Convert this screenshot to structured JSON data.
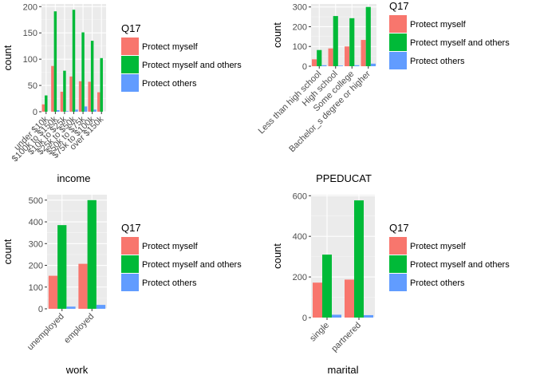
{
  "legend_title": "Q17",
  "series_names": [
    "Protect myself",
    "Protect myself and others",
    "Protect others"
  ],
  "colors": [
    "#F8766D",
    "#00BA38",
    "#619CFF"
  ],
  "chart_data": [
    {
      "type": "bar",
      "xlabel": "income",
      "ylabel": "count",
      "ylim": [
        0,
        205
      ],
      "yticks": [
        0,
        50,
        100,
        150,
        200
      ],
      "categories": [
        "under $10k",
        "$100k to $150k",
        "$10k to $25k",
        "$25k to $50k",
        "$50k to $75k",
        "$75k to $100k",
        "over $150k"
      ],
      "series": [
        {
          "name": "Protect myself",
          "values": [
            14,
            87,
            38,
            67,
            58,
            57,
            37
          ]
        },
        {
          "name": "Protect myself and others",
          "values": [
            31,
            191,
            78,
            194,
            151,
            135,
            102
          ]
        },
        {
          "name": "Protect others",
          "values": [
            0,
            3,
            1,
            4,
            10,
            4,
            0
          ]
        }
      ]
    },
    {
      "type": "bar",
      "xlabel": "PPEDUCAT",
      "ylabel": "count",
      "ylim": [
        0,
        315
      ],
      "yticks": [
        0,
        100,
        200,
        300
      ],
      "categories": [
        "Less than high school",
        "High school",
        "Some college",
        "Bachelor_s degree or higher"
      ],
      "series": [
        {
          "name": "Protect myself",
          "values": [
            35,
            90,
            100,
            133
          ]
        },
        {
          "name": "Protect myself and others",
          "values": [
            82,
            254,
            243,
            300
          ]
        },
        {
          "name": "Protect others",
          "values": [
            5,
            3,
            5,
            13
          ]
        }
      ]
    },
    {
      "type": "bar",
      "xlabel": "work",
      "ylabel": "count",
      "ylim": [
        0,
        525
      ],
      "yticks": [
        0,
        100,
        200,
        300,
        400,
        500
      ],
      "categories": [
        "unemployed",
        "employed"
      ],
      "series": [
        {
          "name": "Protect myself",
          "values": [
            152,
            207
          ]
        },
        {
          "name": "Protect myself and others",
          "values": [
            385,
            500
          ]
        },
        {
          "name": "Protect others",
          "values": [
            10,
            18
          ]
        }
      ]
    },
    {
      "type": "bar",
      "xlabel": "marital",
      "ylabel": "count",
      "ylim": [
        0,
        605
      ],
      "yticks": [
        0,
        200,
        400,
        600
      ],
      "categories": [
        "single",
        "partnered"
      ],
      "series": [
        {
          "name": "Protect myself",
          "values": [
            172,
            187
          ]
        },
        {
          "name": "Protect myself and others",
          "values": [
            310,
            577
          ]
        },
        {
          "name": "Protect others",
          "values": [
            14,
            12
          ]
        }
      ]
    }
  ]
}
